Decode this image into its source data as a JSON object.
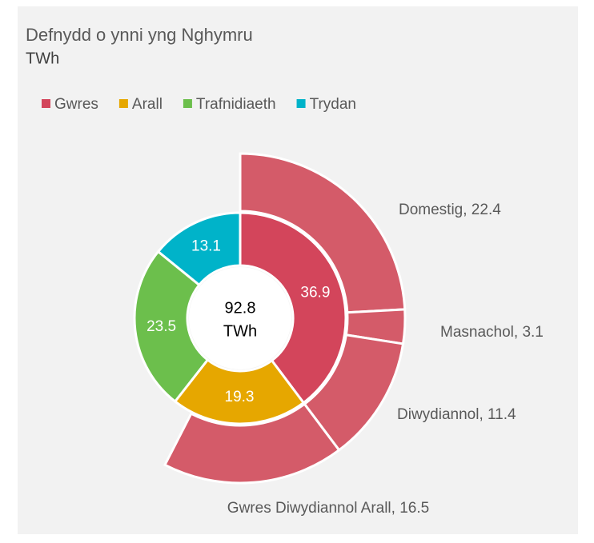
{
  "chart_data": {
    "type": "sunburst",
    "title": "Defnydd o ynni yng Nghymru",
    "subtitle": "TWh",
    "categories": [
      "Gwres",
      "Arall",
      "Trafnidiaeth",
      "Trydan"
    ],
    "values": [
      36.9,
      19.3,
      23.5,
      13.1
    ],
    "colors": [
      "#d3455b",
      "#e6a700",
      "#6cbf4c",
      "#00b3c9"
    ],
    "center_value": 92.8,
    "center_label": "TWh",
    "outer": {
      "values": [
        22.4,
        3.1,
        11.4,
        16.5
      ],
      "value_labels": [
        "Domestig, 22.4",
        "Masnachol, 3.1",
        "Diwydiannol, 11.4",
        "Gwres Diwydiannol Arall, 16.5"
      ],
      "color": "#d45b69"
    },
    "legend": "top-left"
  }
}
